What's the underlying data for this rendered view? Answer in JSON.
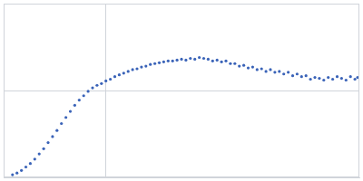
{
  "chart_data": {
    "type": "scatter",
    "x": [
      0.1,
      0.15,
      0.2,
      0.25,
      0.3,
      0.35,
      0.4,
      0.45,
      0.5,
      0.55,
      0.6,
      0.65,
      0.7,
      0.75,
      0.8,
      0.85,
      0.9,
      0.95,
      1.0,
      1.05,
      1.1,
      1.15,
      1.2,
      1.25,
      1.3,
      1.35,
      1.4,
      1.45,
      1.5,
      1.55,
      1.6,
      1.65,
      1.7,
      1.75,
      1.8,
      1.85,
      1.9,
      1.95,
      2.0,
      2.05,
      2.1,
      2.15,
      2.2,
      2.25,
      2.3,
      2.35,
      2.4,
      2.45,
      2.5,
      2.55,
      2.6,
      2.65,
      2.7,
      2.75,
      2.8,
      2.85,
      2.9,
      2.95,
      3.0,
      3.05,
      3.1,
      3.15,
      3.2,
      3.25,
      3.3,
      3.35,
      3.4,
      3.45,
      3.5,
      3.55,
      3.6,
      3.65,
      3.7,
      3.75,
      3.8,
      3.85,
      3.9,
      3.95,
      3.98
    ],
    "values": [
      0.03,
      0.05,
      0.08,
      0.12,
      0.16,
      0.21,
      0.27,
      0.33,
      0.4,
      0.47,
      0.54,
      0.62,
      0.69,
      0.76,
      0.83,
      0.89,
      0.94,
      0.99,
      1.03,
      1.06,
      1.08,
      1.11,
      1.13,
      1.16,
      1.18,
      1.2,
      1.22,
      1.24,
      1.25,
      1.27,
      1.28,
      1.3,
      1.31,
      1.32,
      1.33,
      1.34,
      1.34,
      1.35,
      1.36,
      1.35,
      1.37,
      1.36,
      1.38,
      1.37,
      1.36,
      1.34,
      1.35,
      1.33,
      1.34,
      1.31,
      1.31,
      1.28,
      1.29,
      1.26,
      1.27,
      1.24,
      1.25,
      1.22,
      1.24,
      1.21,
      1.22,
      1.19,
      1.21,
      1.17,
      1.19,
      1.16,
      1.17,
      1.13,
      1.15,
      1.14,
      1.12,
      1.15,
      1.13,
      1.16,
      1.14,
      1.12,
      1.16,
      1.13,
      1.15
    ],
    "color": "#3a63b8",
    "marker": "circle",
    "xlim": [
      0,
      4
    ],
    "xticks": [
      1.15
    ],
    "ylim": [
      0,
      2
    ],
    "yticks": [
      1.0
    ],
    "grid": true,
    "tick_labels": false
  }
}
